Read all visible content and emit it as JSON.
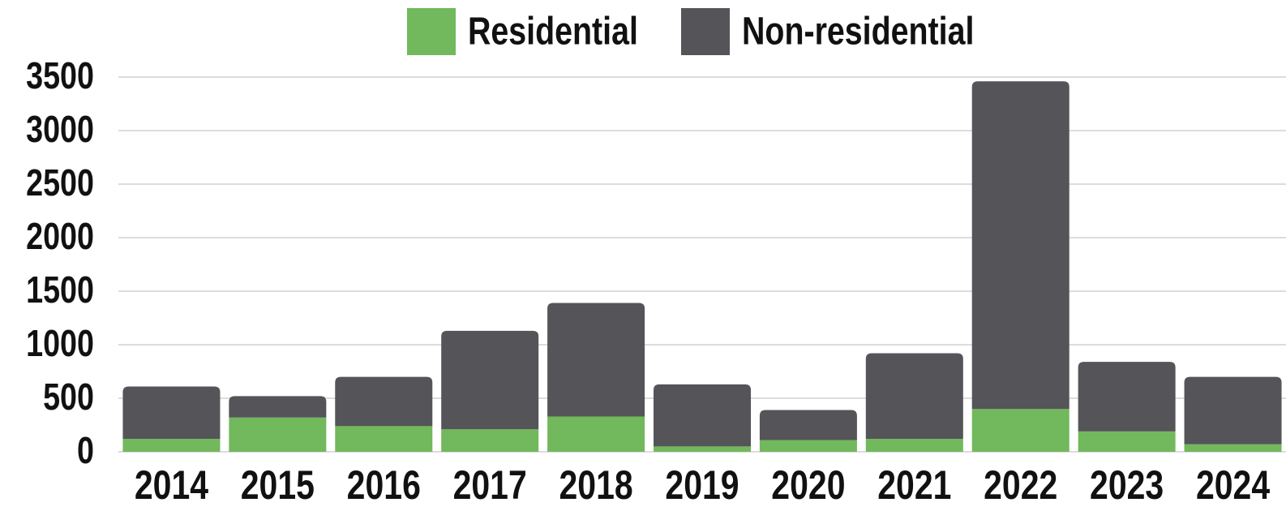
{
  "chart_data": {
    "type": "stacked_bar",
    "categories": [
      "2014",
      "2015",
      "2016",
      "2017",
      "2018",
      "2019",
      "2020",
      "2021",
      "2022",
      "2023",
      "2024"
    ],
    "series": [
      {
        "name": "Residential",
        "color": "#72b85c",
        "values": [
          120,
          320,
          240,
          210,
          330,
          50,
          110,
          120,
          400,
          190,
          70
        ]
      },
      {
        "name": "Non-residential",
        "color": "#555459",
        "values": [
          490,
          200,
          460,
          920,
          1060,
          580,
          280,
          800,
          3060,
          650,
          630
        ]
      }
    ],
    "ylim": [
      0,
      3500
    ],
    "yticks": [
      0,
      500,
      1000,
      1500,
      2000,
      2500,
      3000,
      3500
    ],
    "grid": true,
    "legend": "top"
  }
}
